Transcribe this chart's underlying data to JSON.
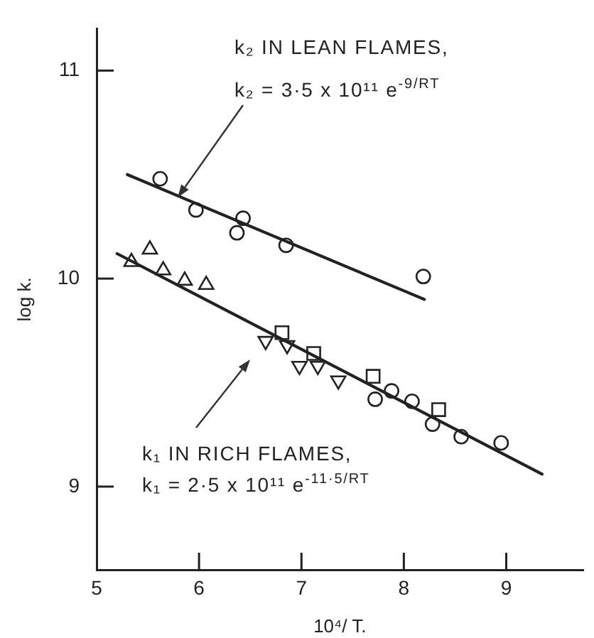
{
  "chart_data": {
    "type": "scatter",
    "xlabel": "10⁴/ T.",
    "ylabel": "log k.",
    "xlim": [
      5,
      9.75
    ],
    "ylim": [
      8.6,
      11.2
    ],
    "xticks": [
      5,
      6,
      7,
      8,
      9
    ],
    "yticks": [
      9,
      10,
      11
    ],
    "grid": false,
    "legend": false,
    "annotations": [
      "k₂ IN LEAN FLAMES,",
      "k₂ = 3·5 x 10¹¹ e$^{-9/RT}$",
      "k₁ IN RICH FLAMES,",
      "k₁ = 2·5 x 10¹¹ e$^{-11·5/RT}$"
    ],
    "series": [
      {
        "marker": "circle",
        "color": "#222222",
        "x": [
          5.62,
          5.97,
          6.43,
          6.37,
          6.85,
          8.19
        ],
        "values": [
          10.48,
          10.33,
          10.29,
          10.22,
          10.16,
          10.01
        ]
      },
      {
        "marker": "triangle",
        "color": "#222222",
        "x": [
          5.34,
          5.52,
          5.65,
          5.86,
          6.07
        ],
        "values": [
          10.08,
          10.14,
          10.04,
          9.99,
          9.97
        ]
      },
      {
        "marker": "triangle-down",
        "color": "#222222",
        "x": [
          6.65,
          6.86,
          6.98,
          7.16,
          7.36
        ],
        "values": [
          9.7,
          9.68,
          9.58,
          9.58,
          9.51
        ]
      },
      {
        "marker": "square",
        "color": "#222222",
        "x": [
          6.81,
          7.12,
          7.7,
          8.34
        ],
        "values": [
          9.74,
          9.64,
          9.53,
          9.37
        ]
      },
      {
        "marker": "circle",
        "color": "#222222",
        "x": [
          7.72,
          7.88,
          8.08,
          8.28,
          8.56,
          8.95
        ],
        "values": [
          9.42,
          9.46,
          9.41,
          9.3,
          9.24,
          9.21
        ]
      },
      {
        "type": "line",
        "marker": "none",
        "line_style": "solid",
        "color": "#222222",
        "x": [
          5.3,
          8.2
        ],
        "values": [
          10.5,
          9.9
        ]
      },
      {
        "type": "line",
        "marker": "none",
        "line_style": "solid",
        "color": "#222222",
        "x": [
          5.2,
          9.35
        ],
        "values": [
          10.12,
          9.06
        ]
      }
    ]
  }
}
